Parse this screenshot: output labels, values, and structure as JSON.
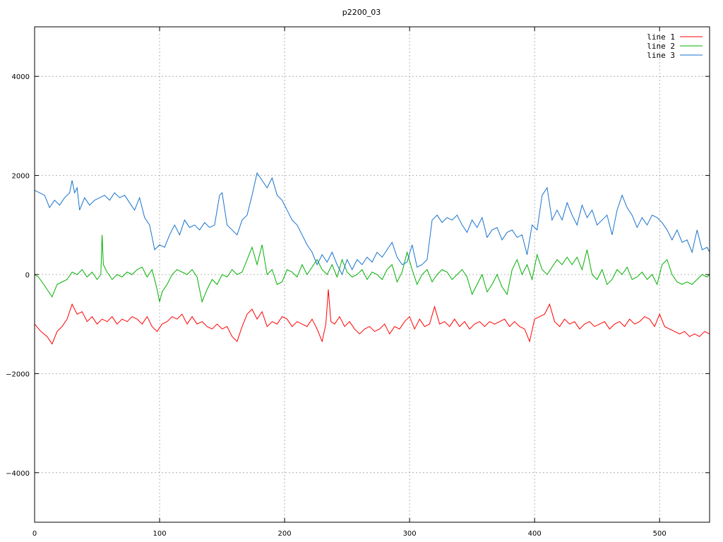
{
  "chart_data": {
    "type": "line",
    "title": "p2200_03",
    "xlim": [
      0,
      540
    ],
    "ylim": [
      -5000,
      5000
    ],
    "x_ticks": [
      0,
      100,
      200,
      300,
      400,
      500
    ],
    "y_ticks": [
      -4000,
      -2000,
      0,
      2000,
      4000
    ],
    "y_tick_labels": [
      "−4000",
      "−2000",
      "0",
      "2000",
      "4000"
    ],
    "grid": true,
    "legend_position": "top-right",
    "series": [
      {
        "name": "line 1",
        "color": "#ff0000",
        "x": [
          0,
          5,
          10,
          14,
          18,
          22,
          26,
          30,
          34,
          38,
          42,
          46,
          50,
          54,
          58,
          62,
          66,
          70,
          74,
          78,
          82,
          86,
          90,
          94,
          98,
          102,
          106,
          110,
          114,
          118,
          122,
          126,
          130,
          134,
          138,
          142,
          146,
          150,
          154,
          158,
          162,
          166,
          170,
          174,
          178,
          182,
          186,
          190,
          194,
          198,
          202,
          206,
          210,
          214,
          218,
          222,
          226,
          230,
          233,
          235,
          237,
          240,
          244,
          248,
          252,
          256,
          260,
          264,
          268,
          272,
          276,
          280,
          284,
          288,
          292,
          296,
          300,
          304,
          308,
          312,
          316,
          320,
          324,
          328,
          332,
          336,
          340,
          344,
          348,
          352,
          356,
          360,
          364,
          368,
          372,
          376,
          380,
          384,
          388,
          392,
          396,
          400,
          404,
          408,
          412,
          416,
          420,
          424,
          428,
          432,
          436,
          440,
          444,
          448,
          452,
          456,
          460,
          464,
          468,
          472,
          476,
          480,
          484,
          488,
          492,
          496,
          500,
          504,
          508,
          512,
          516,
          520,
          524,
          528,
          532,
          536,
          540
        ],
        "y": [
          -1000,
          -1150,
          -1250,
          -1400,
          -1150,
          -1050,
          -900,
          -600,
          -800,
          -750,
          -950,
          -850,
          -1000,
          -900,
          -950,
          -850,
          -1000,
          -900,
          -950,
          -850,
          -900,
          -1000,
          -850,
          -1050,
          -1150,
          -1000,
          -950,
          -850,
          -900,
          -800,
          -1000,
          -850,
          -1000,
          -950,
          -1050,
          -1100,
          -1000,
          -1100,
          -1050,
          -1250,
          -1350,
          -1050,
          -800,
          -700,
          -900,
          -750,
          -1050,
          -950,
          -1000,
          -850,
          -900,
          -1050,
          -950,
          -1000,
          -1050,
          -900,
          -1100,
          -1350,
          -1000,
          -300,
          -950,
          -1000,
          -850,
          -1050,
          -950,
          -1100,
          -1200,
          -1100,
          -1050,
          -1150,
          -1100,
          -1000,
          -1200,
          -1050,
          -1100,
          -950,
          -850,
          -1100,
          -900,
          -1050,
          -1000,
          -650,
          -1000,
          -950,
          -1050,
          -900,
          -1050,
          -950,
          -1100,
          -1000,
          -950,
          -1050,
          -950,
          -1000,
          -950,
          -900,
          -1050,
          -950,
          -1050,
          -1100,
          -1350,
          -900,
          -850,
          -800,
          -600,
          -950,
          -1050,
          -900,
          -1000,
          -950,
          -1100,
          -1000,
          -950,
          -1050,
          -1000,
          -950,
          -1100,
          -1000,
          -950,
          -1050,
          -900,
          -1000,
          -950,
          -850,
          -900,
          -1050,
          -800,
          -1050,
          -1100,
          -1150,
          -1200,
          -1150,
          -1250,
          -1200,
          -1250,
          -1150,
          -1200
        ]
      },
      {
        "name": "line 2",
        "color": "#00b000",
        "x": [
          0,
          3,
          6,
          10,
          14,
          18,
          22,
          26,
          30,
          34,
          38,
          42,
          46,
          50,
          53,
          54,
          55,
          58,
          62,
          66,
          70,
          74,
          78,
          82,
          86,
          90,
          94,
          98,
          100,
          102,
          106,
          110,
          114,
          118,
          122,
          126,
          130,
          134,
          138,
          142,
          146,
          150,
          154,
          158,
          162,
          166,
          170,
          174,
          178,
          182,
          186,
          190,
          194,
          198,
          202,
          206,
          210,
          214,
          218,
          222,
          226,
          230,
          234,
          238,
          242,
          246,
          250,
          254,
          258,
          262,
          266,
          270,
          274,
          278,
          282,
          286,
          290,
          294,
          298,
          302,
          306,
          310,
          314,
          318,
          322,
          326,
          330,
          334,
          338,
          342,
          346,
          350,
          354,
          358,
          362,
          366,
          370,
          374,
          378,
          382,
          386,
          390,
          394,
          398,
          402,
          406,
          410,
          414,
          418,
          422,
          426,
          430,
          434,
          438,
          442,
          446,
          450,
          454,
          458,
          462,
          466,
          470,
          474,
          478,
          482,
          486,
          490,
          494,
          498,
          502,
          506,
          510,
          514,
          518,
          522,
          526,
          530,
          534,
          538,
          540
        ],
        "y": [
          0,
          -50,
          -150,
          -300,
          -450,
          -200,
          -150,
          -100,
          50,
          0,
          100,
          -50,
          50,
          -100,
          0,
          800,
          200,
          50,
          -100,
          0,
          -50,
          50,
          0,
          100,
          150,
          -50,
          100,
          -300,
          -550,
          -350,
          -200,
          0,
          100,
          50,
          0,
          100,
          -50,
          -550,
          -300,
          -100,
          -200,
          0,
          -50,
          100,
          0,
          50,
          300,
          550,
          200,
          600,
          0,
          100,
          -200,
          -150,
          100,
          50,
          -50,
          200,
          0,
          150,
          300,
          100,
          0,
          200,
          -50,
          300,
          50,
          -50,
          0,
          100,
          -100,
          50,
          0,
          -100,
          100,
          200,
          -150,
          50,
          450,
          100,
          -200,
          0,
          100,
          -150,
          0,
          100,
          50,
          -100,
          0,
          100,
          -50,
          -400,
          -200,
          0,
          -350,
          -200,
          0,
          -250,
          -400,
          100,
          300,
          0,
          200,
          -100,
          400,
          100,
          0,
          150,
          300,
          200,
          350,
          200,
          350,
          100,
          500,
          0,
          -100,
          100,
          -200,
          -100,
          100,
          0,
          150,
          -100,
          -50,
          50,
          -100,
          0,
          -200,
          200,
          300,
          0,
          -150,
          -200,
          -150,
          -200,
          -100,
          0,
          -50,
          0
        ]
      },
      {
        "name": "line 3",
        "color": "#1873cc",
        "x": [
          0,
          4,
          8,
          12,
          16,
          20,
          24,
          28,
          30,
          32,
          34,
          36,
          40,
          44,
          48,
          52,
          56,
          60,
          64,
          68,
          72,
          76,
          80,
          84,
          88,
          92,
          96,
          100,
          104,
          108,
          112,
          116,
          120,
          124,
          128,
          132,
          136,
          140,
          144,
          148,
          150,
          154,
          158,
          162,
          166,
          170,
          174,
          178,
          182,
          186,
          190,
          194,
          198,
          202,
          206,
          210,
          214,
          218,
          222,
          226,
          230,
          234,
          238,
          242,
          246,
          250,
          254,
          258,
          262,
          266,
          270,
          274,
          278,
          282,
          286,
          290,
          294,
          298,
          302,
          306,
          310,
          314,
          318,
          322,
          326,
          330,
          334,
          338,
          342,
          346,
          350,
          354,
          358,
          362,
          366,
          370,
          374,
          378,
          382,
          386,
          390,
          394,
          398,
          402,
          406,
          410,
          414,
          418,
          422,
          426,
          430,
          434,
          438,
          442,
          446,
          450,
          454,
          458,
          462,
          466,
          470,
          474,
          478,
          482,
          486,
          490,
          494,
          498,
          502,
          506,
          510,
          514,
          518,
          522,
          526,
          530,
          534,
          538,
          540
        ],
        "y": [
          1700,
          1650,
          1600,
          1350,
          1500,
          1400,
          1550,
          1650,
          1900,
          1650,
          1750,
          1300,
          1550,
          1400,
          1500,
          1550,
          1600,
          1500,
          1650,
          1550,
          1600,
          1450,
          1300,
          1550,
          1150,
          1000,
          500,
          600,
          550,
          800,
          1000,
          800,
          1100,
          950,
          1000,
          900,
          1050,
          950,
          1000,
          1600,
          1650,
          1000,
          900,
          800,
          1100,
          1200,
          1600,
          2050,
          1900,
          1750,
          1950,
          1600,
          1500,
          1300,
          1100,
          1000,
          800,
          600,
          450,
          200,
          400,
          250,
          450,
          200,
          0,
          300,
          100,
          300,
          200,
          350,
          250,
          450,
          350,
          500,
          650,
          350,
          200,
          250,
          600,
          150,
          200,
          300,
          1100,
          1200,
          1050,
          1150,
          1100,
          1200,
          1000,
          850,
          1100,
          950,
          1150,
          750,
          900,
          950,
          700,
          850,
          900,
          750,
          800,
          400,
          1000,
          900,
          1600,
          1750,
          1100,
          1300,
          1100,
          1450,
          1200,
          1000,
          1400,
          1150,
          1300,
          1000,
          1100,
          1200,
          800,
          1300,
          1600,
          1350,
          1200,
          950,
          1150,
          1000,
          1200,
          1150,
          1050,
          900,
          700,
          900,
          650,
          700,
          450,
          900,
          500,
          550,
          450
        ]
      }
    ]
  }
}
